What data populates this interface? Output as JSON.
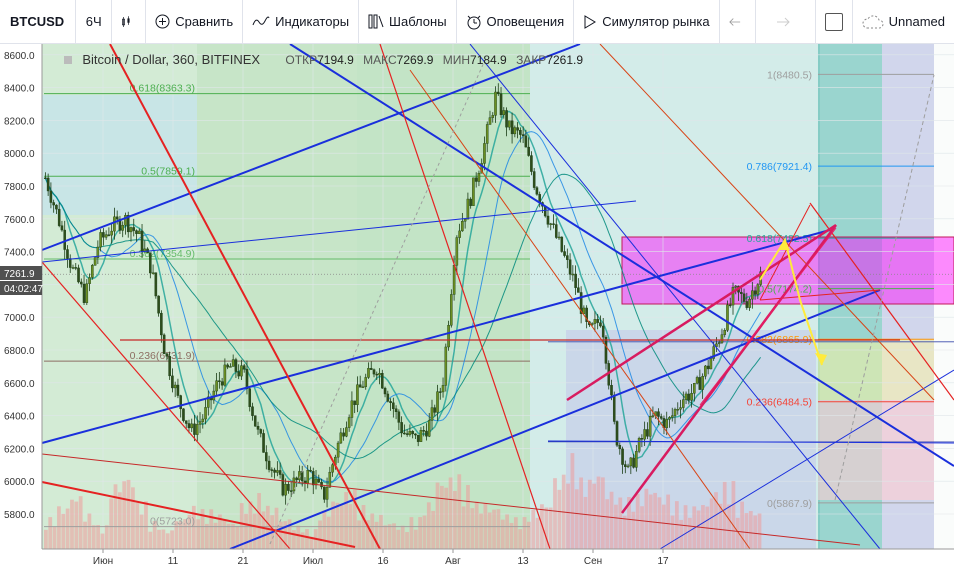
{
  "toolbar": {
    "symbol": "BTCUSD",
    "interval": "6Ч",
    "compare": "Сравнить",
    "indicators": "Индикаторы",
    "templates": "Шаблоны",
    "alerts": "Оповещения",
    "replay": "Симулятор рынка",
    "layout_name": "Unnamed"
  },
  "legend": {
    "title": "Bitcoin / Dollar, 360, BITFINEX",
    "open_label": "ОТКР",
    "open": "7194.9",
    "high_label": "МАКС",
    "high": "7269.9",
    "low_label": "МИН",
    "low": "7184.9",
    "close_label": "ЗАКР",
    "close": "7261.9"
  },
  "price_badges": {
    "last": "7261.9",
    "countdown": "04:02:47"
  },
  "colors": {
    "fib_green": "#4caf50",
    "fib_teal": "#26a69a",
    "fib_blue": "#2196f3",
    "fib_pink": "#ff00ff",
    "channel_blue": "#1a2fdc",
    "trend_red": "#e52222",
    "wedge_crimson": "#d81b60",
    "projection_yellow": "#ffeb3b",
    "price_badge": "#505050"
  },
  "chart_data": {
    "type": "candlestick",
    "symbol": "Bitcoin / Dollar, 360, BITFINEX",
    "y_ticks": [
      5800,
      6000,
      6200,
      6400,
      6600,
      6800,
      7000,
      7200,
      7400,
      7600,
      7800,
      8000,
      8200,
      8400,
      8600
    ],
    "ylim": [
      5650,
      8650
    ],
    "x_tick_labels": [
      "Июн",
      "11",
      "21",
      "Июл",
      "16",
      "Авг",
      "13",
      "Сен",
      "17"
    ],
    "last_price": 7261.9,
    "ohlc_last": {
      "open": 7194.9,
      "high": 7269.9,
      "low": 7184.9,
      "close": 7261.9
    },
    "price_path": [
      7850,
      7600,
      7300,
      7120,
      7450,
      7550,
      7600,
      7500,
      7300,
      6800,
      6500,
      6300,
      6400,
      6600,
      6700,
      6650,
      6300,
      6100,
      5950,
      6000,
      6050,
      5900,
      6200,
      6450,
      6600,
      6700,
      6500,
      6300,
      6250,
      6350,
      6600,
      7500,
      7700,
      8000,
      8350,
      8150,
      8100,
      7800,
      7600,
      7400,
      7200,
      6900,
      7000,
      6300,
      6050,
      6250,
      6400,
      6350,
      6500,
      6550,
      6700,
      6900,
      7150,
      7100,
      7260
    ],
    "fib_retracement_left": [
      {
        "label": "0.618(8363.3)",
        "price": 8363.3
      },
      {
        "label": "0.5(7859.1)",
        "price": 7859.1
      },
      {
        "label": "0.382(7354.9)",
        "price": 7354.9
      },
      {
        "label": "0.236(6731.9)",
        "price": 6731.9
      },
      {
        "label": "0(5723.0)",
        "price": 5723.0
      }
    ],
    "fib_retracement_right": [
      {
        "label": "1(8480.5)",
        "price": 8480.5
      },
      {
        "label": "0.786(7921.4)",
        "price": 7921.4
      },
      {
        "label": "0.618(7482.5)",
        "price": 7482.5
      },
      {
        "label": "0.5(7174.2)",
        "price": 7174.2
      },
      {
        "label": "0.382(6865.9)",
        "price": 6865.9
      },
      {
        "label": "0.236(6484.5)",
        "price": 6484.5
      },
      {
        "label": "0(5867.9)",
        "price": 5867.9
      }
    ],
    "horizontal_levels": [
      6850,
      6240
    ],
    "volume": [
      40,
      55,
      70,
      45,
      30,
      85,
      95,
      60,
      35,
      25,
      40,
      55,
      50,
      45,
      35,
      60,
      70,
      55,
      40,
      30,
      25,
      50,
      65,
      75,
      55,
      45,
      35,
      30,
      40,
      60,
      90,
      95,
      80,
      60,
      55,
      45,
      40,
      50,
      60,
      95,
      120,
      90,
      100,
      75,
      65,
      70,
      80,
      70,
      60,
      55,
      60,
      75,
      85,
      60,
      50
    ]
  }
}
